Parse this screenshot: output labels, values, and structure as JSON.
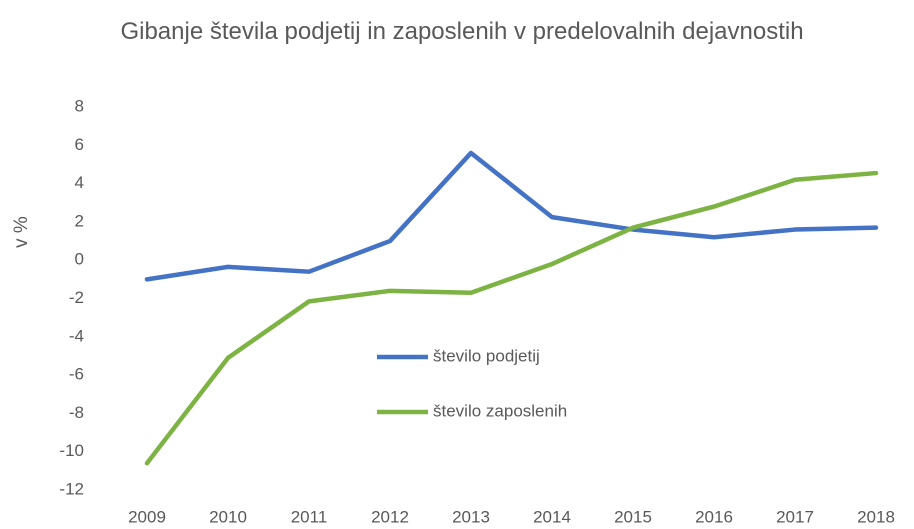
{
  "chart_data": {
    "type": "line",
    "title": "Gibanje števila podjetij in zaposlenih v predelovalnih dejavnostih",
    "y_label": "v %",
    "categories": [
      "2009",
      "2010",
      "2011",
      "2012",
      "2013",
      "2014",
      "2015",
      "2016",
      "2017",
      "2018"
    ],
    "series": [
      {
        "name": "število podjetij",
        "color": "#4472c4",
        "values": [
          -1.0,
          -0.35,
          -0.6,
          1.0,
          5.6,
          2.25,
          1.6,
          1.2,
          1.6,
          1.7
        ]
      },
      {
        "name": "število zaposlenih",
        "color": "#7cb342",
        "values": [
          -10.6,
          -5.1,
          -2.15,
          -1.6,
          -1.7,
          -0.2,
          1.7,
          2.8,
          4.2,
          4.55
        ]
      }
    ],
    "ylim": [
      -12,
      8
    ],
    "yticks": [
      -12,
      -10,
      -8,
      -6,
      -4,
      -2,
      0,
      2,
      4,
      6,
      8
    ],
    "grid": false,
    "legend": "center"
  }
}
